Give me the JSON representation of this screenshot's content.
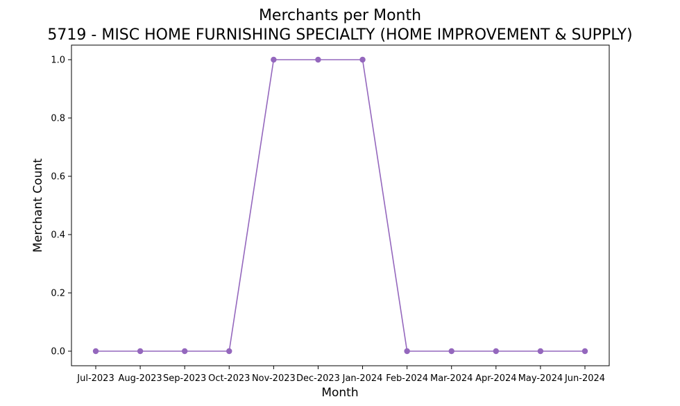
{
  "chart_data": {
    "type": "line",
    "title": "Merchants per Month",
    "subtitle": "5719 - MISC HOME FURNISHING SPECIALTY (HOME IMPROVEMENT & SUPPLY)",
    "xlabel": "Month",
    "ylabel": "Merchant Count",
    "categories": [
      "Jul-2023",
      "Aug-2023",
      "Sep-2023",
      "Oct-2023",
      "Nov-2023",
      "Dec-2023",
      "Jan-2024",
      "Feb-2024",
      "Mar-2024",
      "Apr-2024",
      "May-2024",
      "Jun-2024"
    ],
    "series": [
      {
        "values": [
          0,
          0,
          0,
          0,
          1,
          1,
          1,
          0,
          0,
          0,
          0,
          0
        ],
        "color": "#9467bd"
      }
    ],
    "ylim": [
      -0.05,
      1.05
    ],
    "yticks": [
      0.0,
      0.2,
      0.4,
      0.6,
      0.8,
      1.0
    ],
    "ytick_labels": [
      "0.0",
      "0.2",
      "0.4",
      "0.6",
      "0.8",
      "1.0"
    ],
    "grid": false,
    "legend": "none"
  }
}
